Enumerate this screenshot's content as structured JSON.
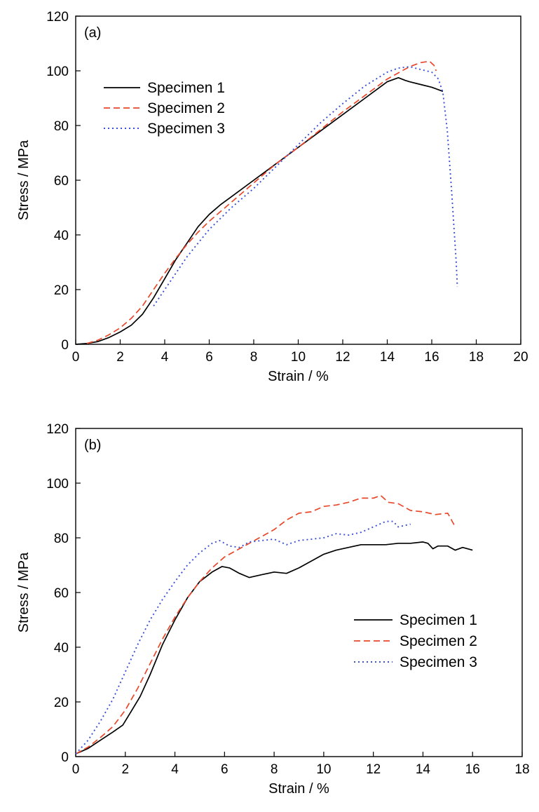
{
  "figure": {
    "panels": [
      {
        "label": "(a)"
      },
      {
        "label": "(b)"
      }
    ]
  },
  "colors": {
    "specimen_1": "#000000",
    "specimen_2": "#e8472a",
    "specimen_3": "#3a4fd8"
  },
  "chart_data": [
    {
      "type": "line",
      "panel_label": "(a)",
      "xlabel": "Strain / %",
      "ylabel": "Stress / MPa",
      "xlim": [
        0,
        20
      ],
      "ylim": [
        0,
        120
      ],
      "xticks": [
        0,
        2,
        4,
        6,
        8,
        10,
        12,
        14,
        16,
        18,
        20
      ],
      "yticks": [
        0,
        20,
        40,
        60,
        80,
        100,
        120
      ],
      "grid": false,
      "legend_position": "top-left",
      "series": [
        {
          "name": "Specimen 1",
          "style": "solid",
          "x": [
            0,
            0.5,
            1,
            1.5,
            2,
            2.5,
            3,
            3.5,
            4,
            4.5,
            5,
            5.5,
            6,
            6.5,
            7,
            8,
            9,
            10,
            11,
            12,
            13,
            14,
            14.5,
            14.8,
            15,
            15.5,
            16,
            16.5
          ],
          "y": [
            0,
            0.3,
            1,
            2.5,
            4.5,
            7,
            11,
            17,
            24,
            31,
            37,
            43,
            47.5,
            51,
            54,
            60,
            66,
            72,
            78,
            84,
            90,
            96,
            97.5,
            96.5,
            96,
            95,
            94,
            92.5
          ]
        },
        {
          "name": "Specimen 2",
          "style": "dashed",
          "x": [
            0.5,
            1,
            1.5,
            2,
            2.5,
            3,
            3.5,
            4,
            4.5,
            5,
            5.5,
            6,
            7,
            8,
            9,
            10,
            11,
            12,
            13,
            14,
            15,
            15.5,
            15.9,
            16.1,
            16.2
          ],
          "y": [
            0.3,
            1.5,
            3.5,
            6,
            9.5,
            14,
            20,
            26,
            31.5,
            36.5,
            41,
            45,
            52,
            59,
            66,
            72,
            78.5,
            85,
            91,
            97,
            101.5,
            103,
            103.5,
            102,
            100
          ]
        },
        {
          "name": "Specimen 3",
          "style": "dotted",
          "x": [
            3.5,
            4,
            4.5,
            5,
            5.5,
            6,
            7,
            8,
            9,
            10,
            11,
            12,
            13,
            14,
            14.5,
            15,
            15.5,
            16,
            16.3,
            16.5,
            16.7,
            16.9,
            17.1,
            17.15
          ],
          "y": [
            14,
            20,
            26,
            32,
            37,
            42,
            50,
            57,
            65,
            73,
            81,
            88,
            94.5,
            99.5,
            101,
            101.5,
            100.5,
            99.5,
            97,
            92,
            78,
            55,
            30,
            21
          ]
        }
      ]
    },
    {
      "type": "line",
      "panel_label": "(b)",
      "xlabel": "Strain / %",
      "ylabel": "Stress / MPa",
      "xlim": [
        0,
        18
      ],
      "ylim": [
        0,
        120
      ],
      "xticks": [
        0,
        2,
        4,
        6,
        8,
        10,
        12,
        14,
        16,
        18
      ],
      "yticks": [
        0,
        20,
        40,
        60,
        80,
        100,
        120
      ],
      "grid": false,
      "legend_position": "bottom-right",
      "series": [
        {
          "name": "Specimen 1",
          "style": "solid",
          "x": [
            0,
            0.5,
            1,
            1.5,
            1.9,
            2.2,
            2.6,
            3,
            3.5,
            4,
            4.5,
            5,
            5.5,
            5.9,
            6.2,
            6.6,
            7,
            7.5,
            8,
            8.5,
            9,
            9.5,
            10,
            10.5,
            11,
            11.5,
            12,
            12.5,
            13,
            13.5,
            14,
            14.2,
            14.4,
            14.6,
            15,
            15.3,
            15.6,
            16
          ],
          "y": [
            1,
            3,
            6,
            9,
            11.5,
            16,
            22,
            30,
            41,
            50,
            58,
            64,
            67.5,
            69.5,
            69,
            67,
            65.5,
            66.5,
            67.5,
            67,
            69,
            71.5,
            74,
            75.5,
            76.5,
            77.5,
            77.5,
            77.5,
            78,
            78,
            78.5,
            78,
            76,
            77,
            77,
            75.5,
            76.5,
            75.5
          ]
        },
        {
          "name": "Specimen 2",
          "style": "dashed",
          "x": [
            0,
            0.5,
            1,
            1.5,
            2,
            2.5,
            3,
            3.5,
            4,
            4.5,
            5,
            5.5,
            6,
            6.5,
            7,
            7.5,
            8,
            8.5,
            9,
            9.5,
            10,
            10.5,
            11,
            11.5,
            12,
            12.3,
            12.6,
            13,
            13.5,
            14,
            14.5,
            15,
            15.3
          ],
          "y": [
            1,
            3.5,
            7,
            11,
            17,
            25,
            34,
            43,
            51,
            58,
            64,
            69,
            73,
            75.5,
            78,
            80.5,
            83,
            86.5,
            89,
            89.5,
            91.5,
            92,
            93,
            94.5,
            94.5,
            95.5,
            93,
            92.5,
            90,
            89.5,
            88.5,
            89,
            84
          ]
        },
        {
          "name": "Specimen 3",
          "style": "dotted",
          "x": [
            0,
            0.5,
            1,
            1.5,
            2,
            2.5,
            3,
            3.5,
            4,
            4.5,
            5,
            5.5,
            5.8,
            6.2,
            6.6,
            7,
            7.5,
            8,
            8.5,
            9,
            9.5,
            10,
            10.5,
            11,
            11.5,
            12,
            12.5,
            12.8,
            13,
            13.5
          ],
          "y": [
            1,
            6,
            13,
            21,
            31,
            41,
            50,
            57.5,
            64,
            70,
            74.5,
            78,
            79,
            77,
            76.5,
            78.5,
            79,
            79.5,
            77.5,
            79,
            79.5,
            80,
            81.5,
            81,
            82,
            84,
            86,
            86,
            84,
            85
          ]
        }
      ]
    }
  ]
}
